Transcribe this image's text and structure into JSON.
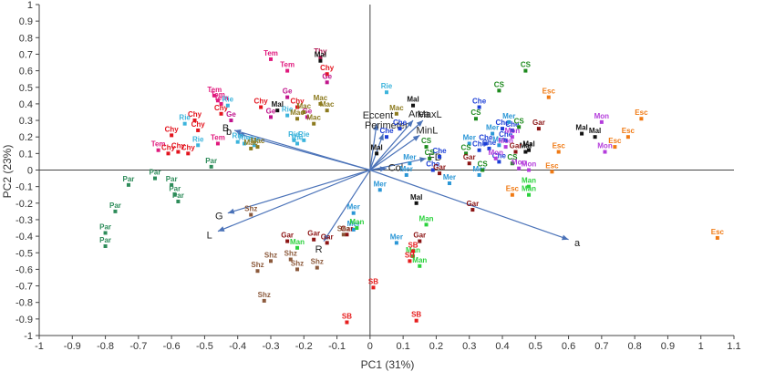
{
  "chart_data": {
    "type": "scatter",
    "title": "",
    "xlabel": "PC1 (31%)",
    "ylabel": "PC2 (23%)",
    "xlim": [
      -1,
      1.1
    ],
    "ylim": [
      -1,
      1
    ],
    "xticks": [
      -1,
      -0.9,
      -0.8,
      -0.7,
      -0.6,
      -0.5,
      -0.4,
      -0.3,
      -0.2,
      -0.1,
      0,
      0.1,
      0.2,
      0.3,
      0.4,
      0.5,
      0.6,
      0.7,
      0.8,
      0.9,
      1,
      1.1
    ],
    "yticks": [
      1,
      0.9,
      0.8,
      0.7,
      0.6,
      0.5,
      0.4,
      0.3,
      0.2,
      0.1,
      0,
      -0.1,
      -0.2,
      -0.3,
      -0.4,
      -0.5,
      -0.6,
      -0.7,
      -0.8,
      -0.9,
      -1
    ],
    "series_colors": {
      "Tem": "#e0197d",
      "Chy": "#e3141e",
      "Ge": "#c0148c",
      "Rie": "#3cb4dc",
      "Mal": "#111111",
      "Mac": "#8c7a1e",
      "Che": "#1c3fd6",
      "Mer": "#2a96d6",
      "CS": "#1e8a1e",
      "Mon": "#b43cdc",
      "Esc": "#f07a14",
      "Gar": "#8c1414",
      "Man": "#2ad23c",
      "Par": "#2e8c5a",
      "Shz": "#8c5a3c",
      "SB": "#e61e1e",
      "Thy": "#b01450"
    },
    "points": [
      {
        "label": "Tem",
        "x": -0.3,
        "y": 0.67
      },
      {
        "label": "Tem",
        "x": -0.25,
        "y": 0.6
      },
      {
        "label": "Tem",
        "x": -0.47,
        "y": 0.45
      },
      {
        "label": "Tem",
        "x": -0.46,
        "y": 0.42
      },
      {
        "label": "Tem",
        "x": -0.45,
        "y": 0.4
      },
      {
        "label": "Tem",
        "x": -0.64,
        "y": 0.12
      },
      {
        "label": "Tem",
        "x": -0.46,
        "y": 0.16
      },
      {
        "label": "Thy",
        "x": -0.15,
        "y": 0.68
      },
      {
        "label": "Mal",
        "x": -0.15,
        "y": 0.66
      },
      {
        "label": "Chy",
        "x": -0.13,
        "y": 0.58
      },
      {
        "label": "Ge",
        "x": -0.13,
        "y": 0.53
      },
      {
        "label": "Ge",
        "x": -0.25,
        "y": 0.44
      },
      {
        "label": "Chy",
        "x": -0.33,
        "y": 0.38
      },
      {
        "label": "Chy",
        "x": -0.22,
        "y": 0.38
      },
      {
        "label": "Ge",
        "x": -0.3,
        "y": 0.32
      },
      {
        "label": "Ge",
        "x": -0.19,
        "y": 0.32
      },
      {
        "label": "Ge",
        "x": -0.42,
        "y": 0.3
      },
      {
        "label": "Chy",
        "x": -0.53,
        "y": 0.3
      },
      {
        "label": "Chy",
        "x": -0.6,
        "y": 0.21
      },
      {
        "label": "Chy",
        "x": -0.52,
        "y": 0.24
      },
      {
        "label": "Chy",
        "x": -0.58,
        "y": 0.11
      },
      {
        "label": "Chy",
        "x": -0.61,
        "y": 0.1
      },
      {
        "label": "Chy",
        "x": -0.55,
        "y": 0.1
      },
      {
        "label": "Chy",
        "x": -0.45,
        "y": 0.34
      },
      {
        "label": "Rie",
        "x": -0.43,
        "y": 0.39
      },
      {
        "label": "Rie",
        "x": -0.56,
        "y": 0.28
      },
      {
        "label": "Rie",
        "x": -0.52,
        "y": 0.15
      },
      {
        "label": "Rie",
        "x": -0.25,
        "y": 0.33
      },
      {
        "label": "Rie",
        "x": -0.23,
        "y": 0.18
      },
      {
        "label": "Rie",
        "x": -0.2,
        "y": 0.18
      },
      {
        "label": "Rie",
        "x": -0.4,
        "y": 0.17
      },
      {
        "label": "Rie",
        "x": -0.38,
        "y": 0.16
      },
      {
        "label": "Rie",
        "x": -0.35,
        "y": 0.15
      },
      {
        "label": "Rie",
        "x": -0.22,
        "y": 0.16
      },
      {
        "label": "Rie",
        "x": 0.05,
        "y": 0.47
      },
      {
        "label": "Mal",
        "x": -0.28,
        "y": 0.36
      },
      {
        "label": "Mal",
        "x": 0.13,
        "y": 0.39
      },
      {
        "label": "Mal",
        "x": 0.02,
        "y": 0.1
      },
      {
        "label": "Mal",
        "x": 0.14,
        "y": -0.2
      },
      {
        "label": "Mal",
        "x": 0.64,
        "y": 0.22
      },
      {
        "label": "Mal",
        "x": 0.68,
        "y": 0.2
      },
      {
        "label": "Mal",
        "x": 0.48,
        "y": 0.12
      },
      {
        "label": "Mal",
        "x": 0.47,
        "y": 0.11
      },
      {
        "label": "Mac",
        "x": -0.15,
        "y": 0.4
      },
      {
        "label": "Mac",
        "x": -0.13,
        "y": 0.36
      },
      {
        "label": "Mac",
        "x": -0.2,
        "y": 0.35
      },
      {
        "label": "Mac",
        "x": -0.22,
        "y": 0.31
      },
      {
        "label": "Mac",
        "x": -0.17,
        "y": 0.28
      },
      {
        "label": "Mac",
        "x": -0.36,
        "y": 0.13
      },
      {
        "label": "Mac",
        "x": -0.34,
        "y": 0.14
      },
      {
        "label": "Mac",
        "x": 0.08,
        "y": 0.34
      },
      {
        "label": "Che",
        "x": 0.09,
        "y": 0.25
      },
      {
        "label": "Che",
        "x": 0.05,
        "y": 0.2
      },
      {
        "label": "Che",
        "x": 0.21,
        "y": 0.08
      },
      {
        "label": "Che",
        "x": 0.19,
        "y": 0.0
      },
      {
        "label": "Che",
        "x": 0.33,
        "y": 0.38
      },
      {
        "label": "Che",
        "x": 0.4,
        "y": 0.25
      },
      {
        "label": "Che",
        "x": 0.43,
        "y": 0.24
      },
      {
        "label": "Che",
        "x": 0.35,
        "y": 0.16
      },
      {
        "label": "Che",
        "x": 0.36,
        "y": 0.13
      },
      {
        "label": "Che",
        "x": 0.41,
        "y": 0.18
      },
      {
        "label": "Che",
        "x": 0.33,
        "y": 0.12
      },
      {
        "label": "Che",
        "x": 0.39,
        "y": 0.05
      },
      {
        "label": "Mer",
        "x": 0.03,
        "y": -0.12
      },
      {
        "label": "Mer",
        "x": 0.11,
        "y": -0.03
      },
      {
        "label": "Mer",
        "x": 0.12,
        "y": 0.04
      },
      {
        "label": "Mer",
        "x": 0.24,
        "y": -0.08
      },
      {
        "label": "Mer",
        "x": 0.3,
        "y": 0.16
      },
      {
        "label": "Mer",
        "x": 0.42,
        "y": 0.29
      },
      {
        "label": "Mer",
        "x": 0.37,
        "y": 0.22
      },
      {
        "label": "Mer",
        "x": 0.39,
        "y": 0.15
      },
      {
        "label": "Mer",
        "x": -0.05,
        "y": -0.26
      },
      {
        "label": "Mer",
        "x": -0.05,
        "y": -0.36
      },
      {
        "label": "Mer",
        "x": 0.08,
        "y": -0.44
      },
      {
        "label": "Mer",
        "x": 0.33,
        "y": -0.03
      },
      {
        "label": "CS",
        "x": 0.47,
        "y": 0.6
      },
      {
        "label": "CS",
        "x": 0.39,
        "y": 0.48
      },
      {
        "label": "CS",
        "x": 0.32,
        "y": 0.31
      },
      {
        "label": "CS",
        "x": 0.45,
        "y": 0.26
      },
      {
        "label": "CS",
        "x": 0.17,
        "y": 0.14
      },
      {
        "label": "CS",
        "x": 0.18,
        "y": 0.07
      },
      {
        "label": "CS",
        "x": 0.29,
        "y": 0.1
      },
      {
        "label": "CS",
        "x": 0.34,
        "y": 0.0
      },
      {
        "label": "CS",
        "x": 0.43,
        "y": 0.04
      },
      {
        "label": "Mon",
        "x": 0.7,
        "y": 0.29
      },
      {
        "label": "Mon",
        "x": 0.71,
        "y": 0.11
      },
      {
        "label": "Mon",
        "x": 0.43,
        "y": 0.2
      },
      {
        "label": "Mon",
        "x": 0.41,
        "y": 0.14
      },
      {
        "label": "Mon",
        "x": 0.38,
        "y": 0.07
      },
      {
        "label": "Mon",
        "x": 0.45,
        "y": 0.01
      },
      {
        "label": "Mon",
        "x": 0.48,
        "y": 0.0
      },
      {
        "label": "Esc",
        "x": 0.54,
        "y": 0.44
      },
      {
        "label": "Esc",
        "x": 0.82,
        "y": 0.31
      },
      {
        "label": "Esc",
        "x": 0.78,
        "y": 0.2
      },
      {
        "label": "Esc",
        "x": 0.74,
        "y": 0.14
      },
      {
        "label": "Esc",
        "x": 0.57,
        "y": 0.11
      },
      {
        "label": "Esc",
        "x": 0.55,
        "y": -0.01
      },
      {
        "label": "Esc",
        "x": 0.43,
        "y": -0.15
      },
      {
        "label": "Esc",
        "x": 1.05,
        "y": -0.41
      },
      {
        "label": "Gar",
        "x": 0.51,
        "y": 0.25
      },
      {
        "label": "Gar",
        "x": 0.44,
        "y": 0.11
      },
      {
        "label": "Gar",
        "x": 0.3,
        "y": 0.04
      },
      {
        "label": "Gar",
        "x": 0.21,
        "y": -0.02
      },
      {
        "label": "Gar",
        "x": 0.31,
        "y": -0.24
      },
      {
        "label": "Gar",
        "x": -0.17,
        "y": -0.42
      },
      {
        "label": "Gar",
        "x": -0.25,
        "y": -0.43
      },
      {
        "label": "Gar",
        "x": -0.13,
        "y": -0.44
      },
      {
        "label": "Gar",
        "x": -0.07,
        "y": -0.39
      },
      {
        "label": "Gar",
        "x": 0.15,
        "y": -0.43
      },
      {
        "label": "Man",
        "x": 0.48,
        "y": -0.1
      },
      {
        "label": "Man",
        "x": 0.48,
        "y": -0.15
      },
      {
        "label": "Man",
        "x": 0.17,
        "y": -0.33
      },
      {
        "label": "Man",
        "x": 0.13,
        "y": -0.52
      },
      {
        "label": "Man",
        "x": 0.15,
        "y": -0.58
      },
      {
        "label": "Man",
        "x": -0.04,
        "y": -0.35
      },
      {
        "label": "Man",
        "x": -0.22,
        "y": -0.47
      },
      {
        "label": "Par",
        "x": -0.65,
        "y": -0.05
      },
      {
        "label": "Par",
        "x": -0.6,
        "y": -0.09
      },
      {
        "label": "Par",
        "x": -0.59,
        "y": -0.15
      },
      {
        "label": "Par",
        "x": -0.58,
        "y": -0.19
      },
      {
        "label": "Par",
        "x": -0.73,
        "y": -0.09
      },
      {
        "label": "Par",
        "x": -0.77,
        "y": -0.25
      },
      {
        "label": "Par",
        "x": -0.8,
        "y": -0.38
      },
      {
        "label": "Par",
        "x": -0.8,
        "y": -0.46
      },
      {
        "label": "Par",
        "x": -0.48,
        "y": 0.02
      },
      {
        "label": "Shz",
        "x": -0.36,
        "y": -0.27
      },
      {
        "label": "Shz",
        "x": -0.3,
        "y": -0.55
      },
      {
        "label": "Shz",
        "x": -0.34,
        "y": -0.61
      },
      {
        "label": "Shz",
        "x": -0.24,
        "y": -0.54
      },
      {
        "label": "Shz",
        "x": -0.22,
        "y": -0.6
      },
      {
        "label": "Shz",
        "x": -0.16,
        "y": -0.59
      },
      {
        "label": "Shz",
        "x": -0.08,
        "y": -0.39
      },
      {
        "label": "Shz",
        "x": -0.32,
        "y": -0.79
      },
      {
        "label": "SB",
        "x": 0.13,
        "y": -0.49
      },
      {
        "label": "SB",
        "x": 0.12,
        "y": -0.55
      },
      {
        "label": "SB",
        "x": 0.01,
        "y": -0.71
      },
      {
        "label": "SB",
        "x": -0.07,
        "y": -0.92
      },
      {
        "label": "SB",
        "x": 0.14,
        "y": -0.91
      }
    ],
    "vectors": [
      {
        "label": "B",
        "x": -0.41,
        "y": 0.24
      },
      {
        "label": "b",
        "x": -0.4,
        "y": 0.22
      },
      {
        "label": "Eccent",
        "x": 0.02,
        "y": 0.28
      },
      {
        "label": "Perimeter",
        "x": 0.04,
        "y": 0.22
      },
      {
        "label": "Area",
        "x": 0.13,
        "y": 0.3
      },
      {
        "label": "MaxL",
        "x": 0.16,
        "y": 0.3
      },
      {
        "label": "MinL",
        "x": 0.15,
        "y": 0.21
      },
      {
        "label": "FD",
        "x": 0.17,
        "y": 0.07
      },
      {
        "label": "Col",
        "x": 0.05,
        "y": 0.01
      },
      {
        "label": "G",
        "x": -0.43,
        "y": -0.26
      },
      {
        "label": "L",
        "x": -0.46,
        "y": -0.37
      },
      {
        "label": "R",
        "x": -0.14,
        "y": -0.43
      },
      {
        "label": "a",
        "x": 0.6,
        "y": -0.42
      }
    ]
  }
}
